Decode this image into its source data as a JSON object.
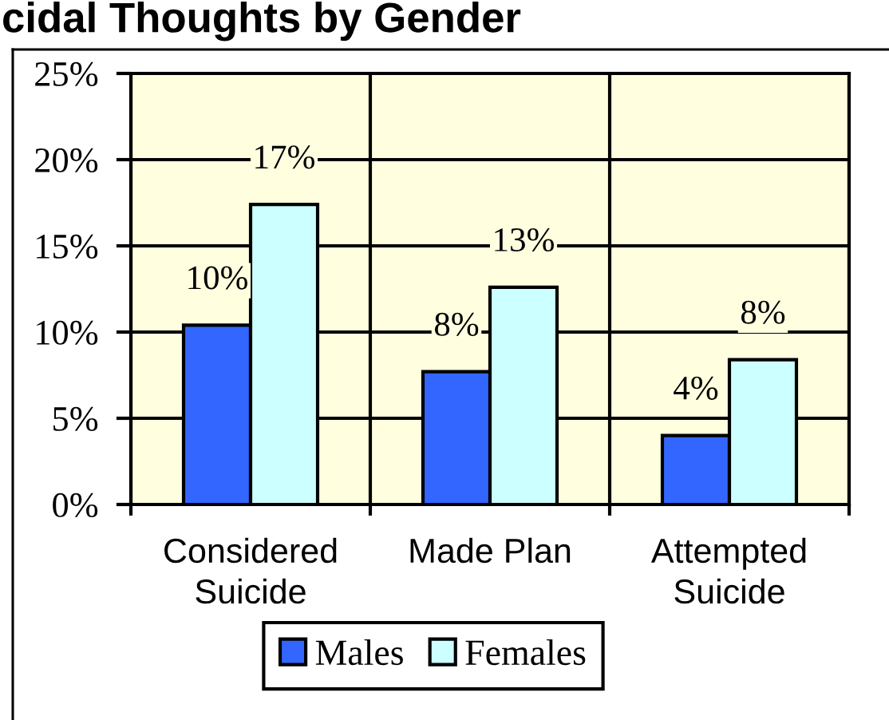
{
  "chart_data": {
    "type": "bar",
    "title": "cidal Thoughts by Gender",
    "categories": [
      "Considered Suicide",
      "Made Plan",
      "Attempted Suicide"
    ],
    "series": [
      {
        "name": "Males",
        "color": "#3366ff",
        "values": [
          10.4,
          7.7,
          4.0
        ],
        "value_labels": [
          "10%",
          "8%",
          "4%"
        ]
      },
      {
        "name": "Females",
        "color": "#ccffff",
        "values": [
          17.4,
          12.6,
          8.4
        ],
        "value_labels": [
          "17%",
          "13%",
          "8%"
        ]
      }
    ],
    "ylim": [
      0,
      25
    ],
    "yticks": [
      {
        "value": 0,
        "label": "0%"
      },
      {
        "value": 5,
        "label": "5%"
      },
      {
        "value": 10,
        "label": "10%"
      },
      {
        "value": 15,
        "label": "15%"
      },
      {
        "value": 20,
        "label": "20%"
      },
      {
        "value": 25,
        "label": "25%"
      }
    ],
    "grid": true,
    "legend": "bottom"
  }
}
